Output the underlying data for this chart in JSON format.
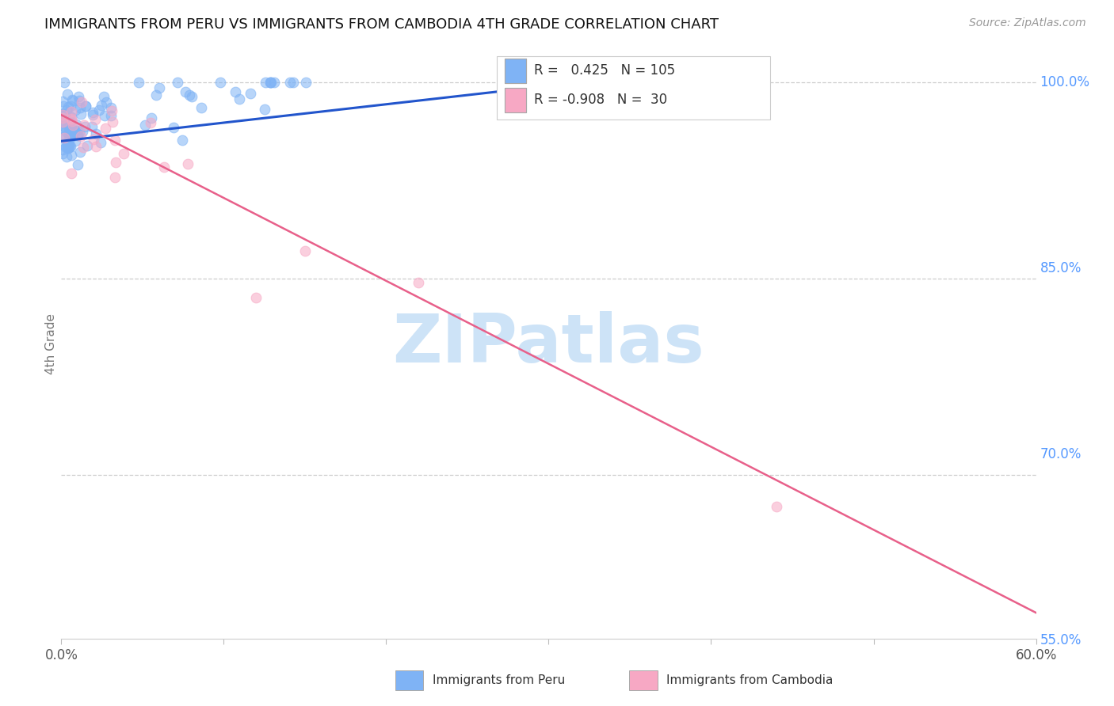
{
  "title": "IMMIGRANTS FROM PERU VS IMMIGRANTS FROM CAMBODIA 4TH GRADE CORRELATION CHART",
  "source": "Source: ZipAtlas.com",
  "ylabel": "4th Grade",
  "right_yticks": [
    1.0,
    0.85,
    0.7,
    0.55
  ],
  "right_ytick_labels": [
    "100.0%",
    "85.0%",
    "70.0%",
    "55.0%"
  ],
  "xmin": 0.0,
  "xmax": 0.6,
  "ymin": 0.575,
  "ymax": 1.025,
  "blue_R": 0.425,
  "blue_N": 105,
  "pink_R": -0.908,
  "pink_N": 30,
  "blue_scatter_color": "#7fb3f5",
  "pink_scatter_color": "#f7a8c4",
  "blue_line_color": "#2255cc",
  "pink_line_color": "#e8608a",
  "watermark_text": "ZIPatlas",
  "watermark_color": "#cde3f7",
  "legend_label_blue": "Immigrants from Peru",
  "legend_label_pink": "Immigrants from Cambodia",
  "background_color": "#ffffff",
  "grid_color": "#cccccc",
  "right_axis_color": "#5599ff",
  "title_color": "#111111",
  "blue_line_x0": 0.0,
  "blue_line_x1": 0.32,
  "blue_line_y0": 0.955,
  "blue_line_y1": 1.0,
  "pink_line_x0": 0.0,
  "pink_line_x1": 0.6,
  "pink_line_y0": 0.975,
  "pink_line_y1": 0.595
}
